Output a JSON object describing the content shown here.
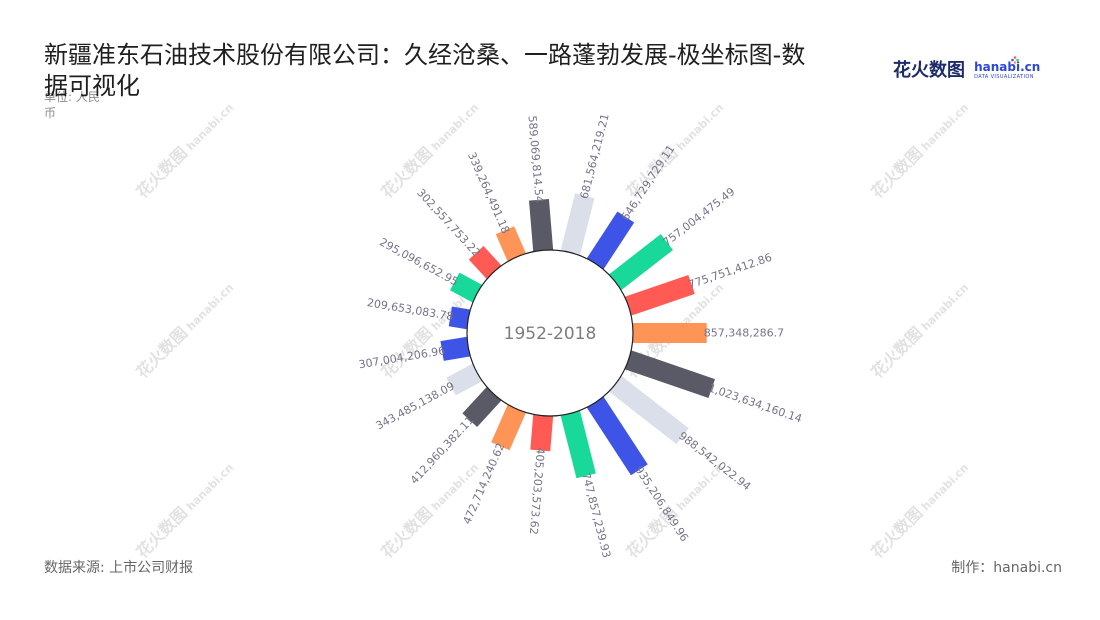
{
  "chart_data": {
    "type": "bar",
    "polar": true,
    "title": "新疆准东石油技术股份有限公司：久经沧桑、一路蓬勃发展-极坐标图-数据可视化",
    "unit": "单位: 人民币",
    "center_label": "1952-2018",
    "values": [
      209653083.78,
      295096652.95,
      302557753.22,
      339264491.18,
      589069814.54,
      681564219.21,
      646729729.11,
      757004475.49,
      775751412.86,
      857348286.7,
      1023634160.14,
      988542022.94,
      935206849.96,
      747857239.93,
      405203573.62,
      472714240.62,
      412960382.11,
      343485138.09,
      307004206.96
    ],
    "colors": [
      "#3d54e6",
      "#19d99a",
      "#ff5b54",
      "#ff9457",
      "#5a5a66",
      "#dadfea"
    ],
    "legend": false,
    "grid": false
  },
  "logo": {
    "cn": "花火数图",
    "en": "hanabi.cn",
    "tagline": "DATA VISUALIZATION"
  },
  "watermark": {
    "cn": "花火数图",
    "en": "hanabi.cn"
  },
  "footer": {
    "source": "数据来源: 上市公司财报",
    "credit": "制作：hanabi.cn"
  }
}
